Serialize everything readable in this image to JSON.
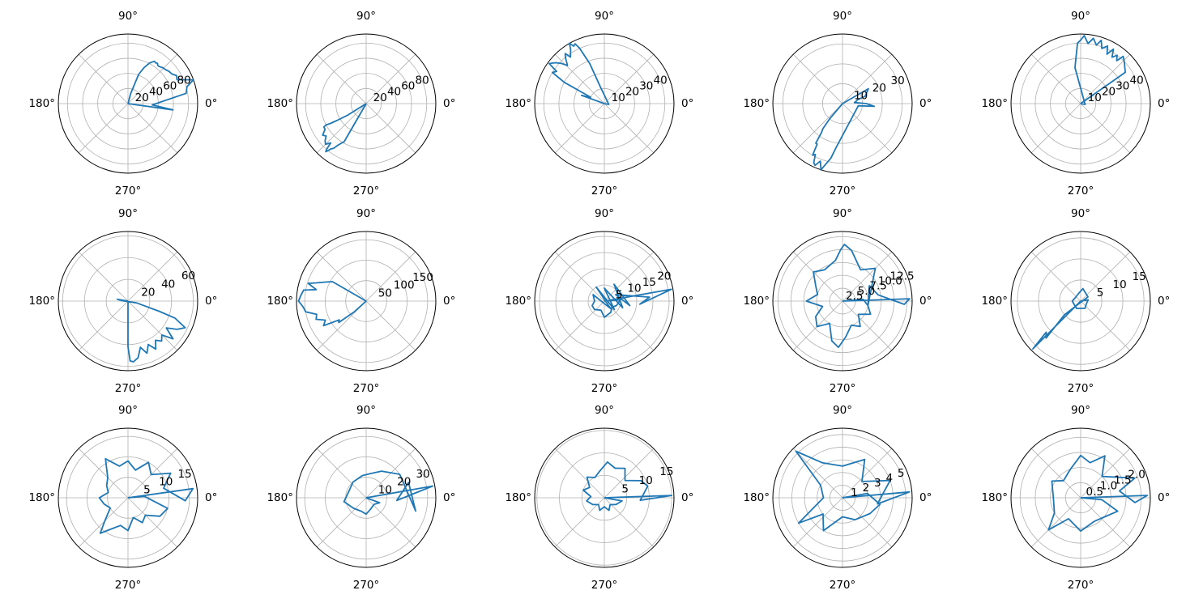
{
  "figure": {
    "background": "#ffffff",
    "line_color": "#1f77b4"
  },
  "chart_data": [
    {
      "type": "line",
      "projection": "polar",
      "grid": true,
      "theta_unit": "degrees",
      "theta_tick_labels": [
        "0°",
        "90°",
        "180°",
        "270°"
      ],
      "rmax": 92,
      "r_ticks": [
        20,
        40,
        60,
        80
      ],
      "r_tick_labels": [
        "20",
        "40",
        "60",
        "80"
      ],
      "theta": [
        0,
        -8,
        -3,
        10,
        16,
        20,
        26,
        30,
        34,
        38,
        42,
        46,
        50,
        52,
        54,
        56,
        58,
        62,
        66,
        70,
        75,
        0
      ],
      "r": [
        0,
        60,
        32,
        78,
        81,
        92,
        72,
        74,
        70,
        69,
        67,
        66,
        64,
        64,
        66,
        65,
        66,
        61,
        52,
        41,
        14,
        0
      ]
    },
    {
      "type": "line",
      "projection": "polar",
      "grid": true,
      "theta_unit": "degrees",
      "theta_tick_labels": [
        "0°",
        "90°",
        "180°",
        "270°"
      ],
      "rmax": 92,
      "r_ticks": [
        20,
        40,
        60,
        80
      ],
      "r_tick_labels": [
        "20",
        "40",
        "60",
        "80"
      ],
      "theta": [
        0,
        240,
        236,
        234,
        232,
        231,
        230,
        229,
        228,
        225,
        222,
        219,
        216,
        212,
        209,
        208,
        209,
        210,
        212,
        0
      ],
      "r": [
        0,
        58,
        66,
        73,
        76,
        80,
        83,
        79,
        70,
        76,
        73,
        68,
        71,
        64,
        64,
        60,
        54,
        45,
        29,
        0
      ]
    },
    {
      "type": "line",
      "projection": "polar",
      "grid": true,
      "theta_unit": "degrees",
      "theta_tick_labels": [
        "0°",
        "90°",
        "180°",
        "270°"
      ],
      "rmax": 46,
      "r_ticks": [
        10,
        20,
        30,
        40
      ],
      "r_tick_labels": [
        "10",
        "20",
        "30",
        "40"
      ],
      "theta": [
        0,
        160,
        158,
        155,
        152,
        149,
        146,
        144,
        140,
        137,
        134,
        130,
        128,
        126,
        122,
        120,
        118,
        116,
        114,
        110,
        104,
        350,
        0
      ],
      "r": [
        0,
        16,
        12,
        10,
        30,
        40,
        38,
        45,
        42,
        39,
        35,
        40,
        42,
        38,
        42,
        46,
        43,
        44,
        40,
        28,
        12,
        3,
        0
      ]
    },
    {
      "type": "line",
      "projection": "polar",
      "grid": true,
      "theta_unit": "degrees",
      "theta_tick_labels": [
        "0°",
        "90°",
        "180°",
        "270°"
      ],
      "rmax": 35,
      "r_ticks": [
        10,
        20,
        30
      ],
      "r_tick_labels": [
        "10",
        "20",
        "30"
      ],
      "theta": [
        0,
        30,
        18,
        15,
        10,
        5,
        0,
        -5,
        -8,
        262,
        258,
        252,
        249,
        246,
        244,
        242,
        240,
        238,
        236,
        234,
        232,
        230,
        0
      ],
      "r": [
        0,
        15,
        12,
        8,
        7,
        6,
        12,
        16,
        8,
        22,
        28,
        35,
        31,
        34,
        33,
        29,
        30,
        24,
        24,
        18,
        16,
        10,
        0
      ]
    },
    {
      "type": "line",
      "projection": "polar",
      "grid": true,
      "theta_unit": "degrees",
      "theta_tick_labels": [
        "0°",
        "90°",
        "180°",
        "270°"
      ],
      "rmax": 46,
      "r_ticks": [
        10,
        20,
        30,
        40
      ],
      "r_tick_labels": [
        "10",
        "20",
        "30",
        "40"
      ],
      "theta": [
        0,
        35,
        40,
        44,
        48,
        50,
        53,
        56,
        59,
        62,
        65,
        69,
        72,
        75,
        79,
        83,
        87,
        90,
        93,
        96,
        99,
        350,
        0
      ],
      "r": [
        0,
        36,
        38,
        40,
        42,
        37,
        40,
        37,
        42,
        37,
        42,
        39,
        44,
        40,
        44,
        40,
        45,
        42,
        40,
        30,
        24,
        3,
        0
      ]
    },
    {
      "type": "line",
      "projection": "polar",
      "grid": true,
      "theta_unit": "degrees",
      "theta_tick_labels": [
        "0°",
        "90°",
        "180°",
        "270°"
      ],
      "rmax": 64,
      "r_ticks": [
        20,
        40,
        60
      ],
      "r_tick_labels": [
        "20",
        "40",
        "60"
      ],
      "theta": [
        0,
        170,
        175,
        -12,
        -18,
        -20,
        -25,
        -30,
        -35,
        -40,
        -45,
        -50,
        -55,
        -60,
        -65,
        -70,
        -75,
        -80,
        -85,
        -88,
        -90,
        0
      ],
      "r": [
        0,
        10,
        6,
        8,
        30,
        46,
        58,
        52,
        43,
        54,
        44,
        48,
        44,
        51,
        44,
        51,
        44,
        53,
        56,
        55,
        42,
        0
      ]
    },
    {
      "type": "line",
      "projection": "polar",
      "grid": true,
      "theta_unit": "degrees",
      "theta_tick_labels": [
        "0°",
        "90°",
        "180°",
        "270°"
      ],
      "rmax": 170,
      "r_ticks": [
        50,
        100,
        150
      ],
      "r_tick_labels": [
        "50",
        "100",
        "150"
      ],
      "theta": [
        0,
        150,
        155,
        160,
        163,
        167,
        170,
        175,
        180,
        185,
        190,
        195,
        200,
        205,
        210,
        215,
        218,
        222,
        0
      ],
      "r": [
        0,
        95,
        110,
        130,
        148,
        125,
        155,
        160,
        165,
        155,
        150,
        125,
        130,
        110,
        120,
        80,
        85,
        40,
        0
      ]
    },
    {
      "type": "line",
      "projection": "polar",
      "grid": true,
      "theta_unit": "degrees",
      "theta_tick_labels": [
        "0°",
        "90°",
        "180°",
        "270°"
      ],
      "rmax": 21.5,
      "r_ticks": [
        5,
        10,
        15,
        20
      ],
      "r_tick_labels": [
        "5",
        "10",
        "15",
        "20"
      ],
      "theta": [
        0,
        10,
        -5,
        5,
        30,
        -10,
        60,
        -20,
        90,
        -40,
        120,
        -50,
        150,
        180,
        200,
        220,
        250,
        270,
        300,
        320,
        340,
        5,
        0
      ],
      "r": [
        0,
        21,
        11,
        14,
        4,
        8,
        6,
        6,
        4,
        4,
        5,
        3,
        4,
        3,
        4,
        4,
        3,
        5,
        4,
        3,
        4,
        5,
        0
      ]
    },
    {
      "type": "line",
      "projection": "polar",
      "grid": true,
      "theta_unit": "degrees",
      "theta_tick_labels": [
        "0°",
        "90°",
        "180°",
        "270°"
      ],
      "rmax": 13.5,
      "r_ticks": [
        2.5,
        5.0,
        7.5,
        10.0,
        12.5
      ],
      "r_tick_labels": [
        "2.5",
        "5.0",
        "7.5",
        "10.0",
        "12.5"
      ],
      "theta": [
        0,
        2,
        -3,
        10,
        30,
        -10,
        45,
        60,
        80,
        88,
        92,
        100,
        120,
        135,
        150,
        165,
        180,
        195,
        210,
        225,
        240,
        255,
        265,
        275,
        290,
        305,
        320,
        335,
        350,
        5,
        0
      ],
      "r": [
        0,
        13,
        12,
        7,
        6,
        5,
        9,
        7,
        10,
        11,
        10,
        8,
        7,
        8,
        6,
        5,
        7,
        4,
        6,
        7,
        5,
        8,
        9,
        7,
        5,
        6,
        4,
        6,
        5,
        4,
        0
      ]
    },
    {
      "type": "line",
      "projection": "polar",
      "grid": true,
      "theta_unit": "degrees",
      "theta_tick_labels": [
        "0°",
        "90°",
        "180°",
        "270°"
      ],
      "rmax": 16.5,
      "r_ticks": [
        5,
        10,
        15
      ],
      "r_tick_labels": [
        "5",
        "10",
        "15"
      ],
      "theta": [
        0,
        225,
        222,
        227,
        220,
        30,
        80,
        100,
        140,
        180,
        240,
        300,
        340,
        10,
        0
      ],
      "r": [
        0,
        16,
        11,
        12,
        5,
        2,
        3,
        2,
        1.5,
        2,
        2,
        2,
        1.5,
        1.8,
        0
      ]
    },
    {
      "type": "line",
      "projection": "polar",
      "grid": true,
      "theta_unit": "degrees",
      "theta_tick_labels": [
        "0°",
        "90°",
        "180°",
        "270°"
      ],
      "rmax": 17,
      "r_ticks": [
        5,
        10,
        15
      ],
      "r_tick_labels": [
        "5",
        "10",
        "15"
      ],
      "theta": [
        0,
        8,
        -3,
        15,
        30,
        45,
        60,
        75,
        90,
        105,
        120,
        135,
        150,
        165,
        180,
        195,
        210,
        225,
        232,
        240,
        255,
        270,
        285,
        300,
        315,
        330,
        345,
        5,
        0
      ],
      "r": [
        0,
        16,
        14,
        9,
        12,
        8,
        10,
        7,
        9,
        8,
        11,
        7,
        6,
        5,
        7,
        6,
        5,
        8,
        11,
        9,
        7,
        8,
        5,
        7,
        6,
        9,
        10,
        4,
        0
      ]
    },
    {
      "type": "line",
      "projection": "polar",
      "grid": true,
      "theta_unit": "degrees",
      "theta_tick_labels": [
        "0°",
        "90°",
        "180°",
        "270°"
      ],
      "rmax": 34,
      "r_ticks": [
        10,
        20,
        30
      ],
      "r_tick_labels": [
        "10",
        "20",
        "30"
      ],
      "theta": [
        0,
        10,
        -5,
        20,
        -15,
        35,
        60,
        80,
        100,
        130,
        160,
        190,
        220,
        250,
        270,
        290,
        320,
        340,
        0
      ],
      "r": [
        0,
        33,
        15,
        22,
        25,
        20,
        15,
        12,
        11,
        10,
        9,
        11,
        8,
        7,
        8,
        6,
        5,
        7,
        0
      ]
    },
    {
      "type": "line",
      "projection": "polar",
      "grid": true,
      "theta_unit": "degrees",
      "theta_tick_labels": [
        "0°",
        "90°",
        "180°",
        "270°"
      ],
      "rmax": 15.5,
      "r_ticks": [
        5,
        10,
        15
      ],
      "r_tick_labels": [
        "5",
        "10",
        "15"
      ],
      "theta": [
        0,
        2,
        -4,
        15,
        25,
        40,
        55,
        70,
        85,
        100,
        115,
        130,
        145,
        160,
        175,
        190,
        210,
        230,
        250,
        270,
        290,
        310,
        330,
        350,
        0
      ],
      "r": [
        0,
        15,
        8,
        10,
        9,
        6,
        8,
        7,
        8,
        6,
        5,
        6,
        4,
        5,
        3,
        4,
        3,
        2,
        3,
        2,
        3,
        2,
        3,
        4,
        0
      ]
    },
    {
      "type": "line",
      "projection": "polar",
      "grid": true,
      "theta_unit": "degrees",
      "theta_tick_labels": [
        "0°",
        "90°",
        "180°",
        "270°"
      ],
      "rmax": 5.5,
      "r_ticks": [
        1,
        2,
        3,
        4,
        5
      ],
      "r_tick_labels": [
        "1",
        "2",
        "3",
        "4",
        "5"
      ],
      "theta": [
        0,
        5,
        -10,
        20,
        40,
        60,
        90,
        120,
        135,
        150,
        180,
        200,
        210,
        220,
        240,
        270,
        300,
        330,
        350,
        10,
        0
      ],
      "r": [
        0,
        5.3,
        2.8,
        4.0,
        2.0,
        3.5,
        2.5,
        3.2,
        5.2,
        2.0,
        1.5,
        2.5,
        4.0,
        2.0,
        3.0,
        1.5,
        2.0,
        2.5,
        3.0,
        2.0,
        0
      ]
    },
    {
      "type": "line",
      "projection": "polar",
      "grid": true,
      "theta_unit": "degrees",
      "theta_tick_labels": [
        "0°",
        "90°",
        "180°",
        "270°"
      ],
      "rmax": 2.3,
      "r_ticks": [
        0.5,
        1.0,
        1.5,
        2.0
      ],
      "r_tick_labels": [
        "0.5",
        "1.0",
        "1.5",
        "2.0"
      ],
      "theta": [
        0,
        2,
        -5,
        10,
        20,
        45,
        60,
        75,
        90,
        110,
        135,
        150,
        180,
        210,
        225,
        240,
        270,
        300,
        320,
        340,
        355,
        0
      ],
      "r": [
        0,
        2.2,
        1.8,
        1.3,
        1.9,
        1.0,
        1.6,
        1.2,
        1.4,
        1.0,
        0.8,
        1.1,
        0.9,
        1.0,
        1.5,
        0.8,
        1.1,
        0.9,
        1.0,
        1.3,
        0.7,
        0
      ]
    }
  ]
}
